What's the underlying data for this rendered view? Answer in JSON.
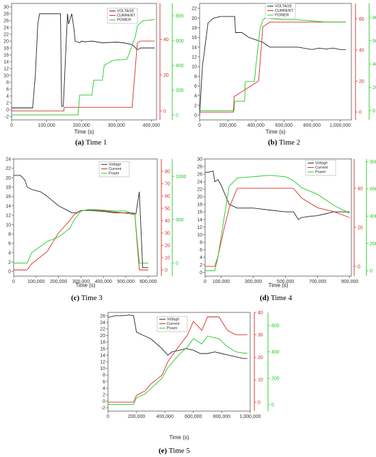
{
  "colors": {
    "voltage": "#222222",
    "current": "#d62a1e",
    "power": "#1fc81f",
    "axis": "#555555"
  },
  "chart_data": [
    {
      "type": "line",
      "caption_tag": "(a)",
      "caption_text": "Time 1",
      "xlabel": "Time (s)",
      "xlim": [
        0,
        415000
      ],
      "xticks": [
        0,
        100000,
        200000,
        300000,
        400000
      ],
      "xtick_labels": [
        "0",
        "100,000",
        "200,000",
        "300,000",
        "400,000"
      ],
      "ylim_left": [
        -3,
        31
      ],
      "yticks_left": [
        -2,
        0,
        2,
        4,
        6,
        8,
        10,
        12,
        14,
        16,
        18,
        20,
        22,
        24,
        26,
        28,
        30
      ],
      "ylim_current": [
        -5,
        60
      ],
      "yticks_current": [
        0,
        20,
        40
      ],
      "ylim_power": [
        -40,
        900
      ],
      "yticks_power": [
        0,
        200,
        400,
        600,
        800
      ],
      "legend": [
        "VOLTAGE",
        "CURRENT",
        "POWER"
      ],
      "series": [
        {
          "name": "VOLTAGE",
          "axis": "left",
          "x": [
            0,
            60000,
            68000,
            75000,
            80000,
            90000,
            140000,
            143000,
            148000,
            160000,
            163000,
            172000,
            178000,
            182000,
            195000,
            200000,
            210000,
            230000,
            260000,
            300000,
            320000,
            345000,
            350000,
            360000,
            370000,
            380000,
            410000
          ],
          "y": [
            0.5,
            0.5,
            10,
            25,
            28,
            28,
            28,
            1,
            1,
            28,
            25,
            28,
            24,
            20,
            19.5,
            20,
            19.8,
            20,
            19.5,
            19.7,
            19.5,
            19,
            18.5,
            17.5,
            18,
            18,
            18
          ]
        },
        {
          "name": "CURRENT",
          "axis": "current",
          "x": [
            0,
            150000,
            150500,
            345000,
            360000,
            370000,
            410000
          ],
          "y": [
            0,
            0,
            2,
            2,
            38,
            39,
            39
          ]
        },
        {
          "name": "POWER",
          "axis": "power",
          "x": [
            0,
            150000,
            160000,
            190000,
            195000,
            230000,
            235000,
            260000,
            265000,
            290000,
            330000,
            340000,
            345000,
            355000,
            360000,
            375000,
            410000
          ],
          "y": [
            0,
            0,
            0,
            0,
            160,
            160,
            280,
            280,
            400,
            440,
            450,
            520,
            560,
            640,
            720,
            760,
            770
          ]
        }
      ]
    },
    {
      "type": "line",
      "caption_tag": "(b)",
      "caption_text": "Time 2",
      "xlabel": "Time (s)",
      "xlim": [
        0,
        1080000
      ],
      "xticks": [
        0,
        200000,
        400000,
        600000,
        800000,
        1000000
      ],
      "xtick_labels": [
        "0",
        "200,000",
        "400,000",
        "600,000",
        "800,000",
        "1,000,000"
      ],
      "ylim_left": [
        -1,
        23
      ],
      "yticks_left": [
        0,
        2,
        4,
        6,
        8,
        10,
        12,
        14,
        16,
        18,
        20,
        22
      ],
      "ylim_current": [
        -5,
        70
      ],
      "yticks_current": [
        0,
        20,
        40,
        60
      ],
      "ylim_power": [
        -80,
        920
      ],
      "yticks_power": [
        0,
        200,
        400,
        600,
        800
      ],
      "legend": [
        "VOLTAGE",
        "CURRENT",
        "POWER"
      ],
      "series": [
        {
          "name": "VOLTAGE",
          "axis": "left",
          "x": [
            0,
            20000,
            60000,
            100000,
            150000,
            200000,
            250000,
            255000,
            300000,
            350000,
            400000,
            450000,
            500000,
            600000,
            700000,
            800000,
            850000,
            900000,
            950000,
            1000000,
            1040000
          ],
          "y": [
            0,
            10,
            19,
            20,
            20.3,
            20.3,
            20.3,
            17,
            17,
            16,
            15.5,
            15,
            14,
            14,
            14,
            13.5,
            13.8,
            13.6,
            13.8,
            13.5,
            13.5
          ]
        },
        {
          "name": "CURRENT",
          "axis": "current",
          "x": [
            0,
            240000,
            245000,
            420000,
            450000,
            500000,
            1040000
          ],
          "y": [
            0,
            0,
            10,
            20,
            55,
            58,
            58
          ]
        },
        {
          "name": "POWER",
          "axis": "power",
          "x": [
            0,
            245000,
            250000,
            320000,
            325000,
            390000,
            400000,
            430000,
            450000,
            480000,
            500000,
            600000,
            700000,
            800000,
            900000,
            1040000
          ],
          "y": [
            0,
            0,
            80,
            80,
            250,
            250,
            380,
            700,
            780,
            800,
            790,
            780,
            780,
            770,
            760,
            760
          ]
        }
      ]
    },
    {
      "type": "line",
      "caption_tag": "(c)",
      "caption_text": "Time 3",
      "xlabel": "Time (s)",
      "xlim": [
        0,
        640000
      ],
      "xticks": [
        0,
        100000,
        200000,
        300000,
        400000,
        500000,
        600000
      ],
      "xtick_labels": [
        "0",
        "100,000",
        "200,000",
        "300,000",
        "400,000",
        "500,000",
        "600,000"
      ],
      "ylim_left": [
        -1,
        24
      ],
      "yticks_left": [
        0,
        2,
        4,
        6,
        8,
        10,
        12,
        14,
        16,
        18,
        20,
        22,
        24
      ],
      "ylim_current": [
        -5,
        90
      ],
      "yticks_current": [
        0,
        10,
        20,
        30,
        40,
        50,
        60,
        70,
        80
      ],
      "ylim_power": [
        -150,
        1200
      ],
      "yticks_power": [
        0,
        500,
        1000
      ],
      "legend": [
        "Voltage",
        "Current",
        "Power"
      ],
      "series": [
        {
          "name": "Voltage",
          "axis": "left",
          "x": [
            0,
            30000,
            50000,
            60000,
            80000,
            120000,
            150000,
            200000,
            240000,
            260000,
            280000,
            300000,
            340000,
            400000,
            450000,
            500000,
            530000,
            545000,
            560000,
            575000,
            600000
          ],
          "y": [
            20.5,
            20.5,
            19.5,
            18,
            17.5,
            17,
            16,
            14,
            13,
            12.5,
            12.5,
            13,
            13,
            12.8,
            12.5,
            12.5,
            12.5,
            12.3,
            17,
            0.8,
            0.8
          ]
        },
        {
          "name": "Current",
          "axis": "current",
          "x": [
            0,
            60000,
            80000,
            150000,
            200000,
            250000,
            270000,
            300000,
            340000,
            400000,
            450000,
            500000,
            540000,
            560000,
            600000
          ],
          "y": [
            0,
            0,
            5,
            15,
            30,
            40,
            45,
            48,
            49,
            48,
            47,
            46,
            45,
            0,
            0
          ]
        },
        {
          "name": "Power",
          "axis": "power",
          "x": [
            0,
            60000,
            80000,
            150000,
            200000,
            250000,
            270000,
            300000,
            340000,
            400000,
            450000,
            500000,
            540000,
            560000,
            600000
          ],
          "y": [
            0,
            0,
            120,
            250,
            300,
            400,
            500,
            600,
            620,
            610,
            600,
            600,
            560,
            0,
            0
          ]
        }
      ]
    },
    {
      "type": "line",
      "caption_tag": "(d)",
      "caption_text": "Time 4",
      "xlabel": "Time (s)",
      "xlim": [
        0,
        910000
      ],
      "xticks": [
        0,
        100000,
        300000,
        500000,
        700000,
        900000
      ],
      "xtick_labels": [
        "0",
        "100,000",
        "300,000",
        "500,000",
        "700,000",
        "900,000"
      ],
      "ylim_left": [
        -1,
        30
      ],
      "yticks_left": [
        0,
        2,
        4,
        6,
        8,
        10,
        12,
        14,
        16,
        18,
        20,
        22,
        24,
        26,
        28,
        30
      ],
      "ylim_current": [
        -5,
        55
      ],
      "yticks_current": [
        0,
        20,
        40
      ],
      "ylim_power": [
        -40,
        820
      ],
      "yticks_power": [
        0,
        200,
        400,
        600,
        800
      ],
      "legend": [
        "Voltage",
        "Current",
        "Power"
      ],
      "series": [
        {
          "name": "Voltage",
          "axis": "left",
          "x": [
            0,
            20000,
            50000,
            60000,
            80000,
            100000,
            120000,
            150000,
            200000,
            250000,
            300000,
            400000,
            500000,
            550000,
            580000,
            600000,
            650000,
            700000,
            750000,
            800000,
            850000,
            900000
          ],
          "y": [
            26.5,
            26.5,
            26.8,
            24,
            24.5,
            23,
            21,
            18,
            17,
            17,
            17,
            16.5,
            16,
            16,
            14,
            14.5,
            14.8,
            15,
            15.5,
            16,
            16,
            16
          ]
        },
        {
          "name": "Current",
          "axis": "current",
          "x": [
            0,
            60000,
            80000,
            120000,
            150000,
            200000,
            300000,
            400000,
            500000,
            550000,
            600000,
            700000,
            800000,
            900000
          ],
          "y": [
            0,
            0,
            5,
            20,
            30,
            40,
            40,
            40,
            40,
            40,
            35,
            30,
            28,
            25
          ]
        },
        {
          "name": "Power",
          "axis": "power",
          "x": [
            0,
            60000,
            80000,
            120000,
            150000,
            200000,
            300000,
            400000,
            500000,
            550000,
            600000,
            700000,
            800000,
            900000
          ],
          "y": [
            0,
            0,
            100,
            400,
            620,
            680,
            690,
            700,
            690,
            660,
            610,
            560,
            480,
            420
          ]
        }
      ]
    },
    {
      "type": "line",
      "caption_tag": "(e)",
      "caption_text": "Time 5",
      "xlabel": "Time (s)",
      "xlim": [
        0,
        1000000
      ],
      "xticks": [
        0,
        200000,
        400000,
        600000,
        800000,
        1000000
      ],
      "xtick_labels": [
        "0",
        "200,000",
        "400,000",
        "600,000",
        "800,000",
        "1,000,000"
      ],
      "ylim_left": [
        -3,
        27
      ],
      "yticks_left": [
        -2,
        0,
        2,
        4,
        6,
        8,
        10,
        12,
        14,
        16,
        18,
        20,
        22,
        24,
        26
      ],
      "ylim_current": [
        -4,
        40
      ],
      "yticks_current": [
        0,
        10,
        20,
        30,
        40
      ],
      "ylim_power": [
        -50,
        700
      ],
      "yticks_power": [
        0,
        200,
        400,
        600
      ],
      "legend": [
        "Voltage",
        "Current",
        "Power"
      ],
      "series": [
        {
          "name": "Voltage",
          "axis": "left",
          "x": [
            0,
            50000,
            100000,
            150000,
            180000,
            200000,
            250000,
            300000,
            340000,
            380000,
            420000,
            450000,
            500000,
            550000,
            600000,
            650000,
            700000,
            750000,
            800000,
            850000,
            900000,
            950000,
            980000
          ],
          "y": [
            25.5,
            26,
            26,
            26.2,
            26,
            21,
            20,
            19,
            17.5,
            16,
            14,
            15,
            15.5,
            16,
            15.5,
            14.5,
            14.5,
            15,
            14.5,
            14,
            13.5,
            13,
            13
          ]
        },
        {
          "name": "Current",
          "axis": "current",
          "x": [
            0,
            180000,
            200000,
            260000,
            300000,
            380000,
            420000,
            500000,
            560000,
            600000,
            660000,
            700000,
            780000,
            840000,
            900000,
            960000,
            980000
          ],
          "y": [
            0,
            0,
            3,
            5,
            8,
            12,
            18,
            25,
            30,
            36,
            32,
            38,
            38,
            32,
            30,
            30,
            30
          ]
        },
        {
          "name": "Power",
          "axis": "power",
          "x": [
            0,
            180000,
            200000,
            260000,
            300000,
            380000,
            420000,
            500000,
            560000,
            600000,
            660000,
            700000,
            780000,
            840000,
            900000,
            960000,
            980000
          ],
          "y": [
            0,
            0,
            50,
            80,
            120,
            200,
            280,
            380,
            440,
            500,
            460,
            520,
            500,
            440,
            400,
            390,
            390
          ]
        }
      ]
    }
  ]
}
